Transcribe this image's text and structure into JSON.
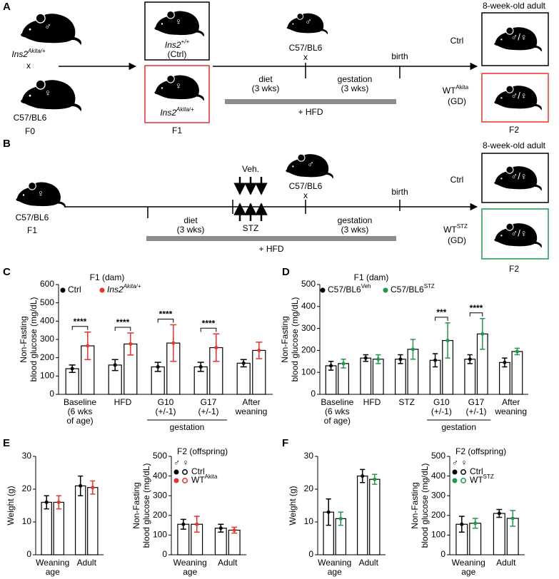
{
  "panel_labels": [
    "A",
    "B",
    "C",
    "D",
    "E",
    "F"
  ],
  "panel_a": {
    "f0_male_sign": "♂",
    "f0_male_gene": "Ins2",
    "f0_male_allele": "Akita/+",
    "f0_cross": "x",
    "f0_female_sign": "♀",
    "f0_female_strain": "C57/BL6",
    "f0_generation": "F0",
    "f1_ctrl_sign": "♀",
    "f1_ctrl_gene": "Ins2",
    "f1_ctrl_allele": "+/+",
    "f1_ctrl_label": "(Ctrl)",
    "f1_akita_sign": "♀",
    "f1_akita_gene": "Ins2",
    "f1_akita_allele": "Akita/+",
    "f1_generation": "F1",
    "sire_sign": "♂",
    "sire_strain": "C57/BL6",
    "sire_cross": "x",
    "diet": "diet",
    "diet_duration": "(3 wks)",
    "gestation": "gestation",
    "gestation_duration": "(3 wks)",
    "birth": "birth",
    "hfd": "+ HFD",
    "f2_title": "8-week-old adult",
    "f2_ctrl": "Ctrl",
    "f2_ctrl_sign": "♂/♀",
    "f2_gd_name": "WT",
    "f2_gd_sup": "Akita",
    "f2_gd_label": "(GD)",
    "f2_gd_sign": "♂/♀",
    "f2_generation": "F2"
  },
  "panel_b": {
    "f1_sign": "♀",
    "f1_strain": "C57/BL6",
    "f1_generation": "F1",
    "veh": "Veh.",
    "stz": "STZ",
    "diet": "diet",
    "diet_duration": "(3 wks)",
    "sire_sign": "♂",
    "sire_strain": "C57/BL6",
    "sire_cross": "x",
    "gestation": "gestation",
    "gestation_duration": "(3 wks)",
    "birth": "birth",
    "hfd": "+ HFD",
    "f2_title": "8-week-old adult",
    "f2_ctrl": "Ctrl",
    "f2_ctrl_sign": "♂/♀",
    "f2_gd_name": "WT",
    "f2_gd_sup": "STZ",
    "f2_gd_label": "(GD)",
    "f2_gd_sign": "♂/♀",
    "f2_generation": "F2"
  },
  "chart_data": [
    {
      "type": "bar",
      "title": "F1 (dam)",
      "ylabel": [
        "Non-Fasting",
        "blood glucose (mg/dL)"
      ],
      "categories": [
        [
          "Baseline",
          "(6 wks",
          "of age)"
        ],
        [
          "HFD"
        ],
        [
          "G10",
          "(+/-1)"
        ],
        [
          "G17",
          "(+/-1)"
        ],
        [
          "After",
          "weaning"
        ]
      ],
      "group_label": {
        "text": "gestation",
        "categories": [
          2,
          3
        ]
      },
      "series": [
        {
          "name": "Ctrl",
          "color": "#000000",
          "values": [
            140,
            160,
            150,
            150,
            170
          ],
          "errors": [
            20,
            30,
            25,
            25,
            20
          ]
        },
        {
          "name": "Ins2",
          "superscript": "Akita/+",
          "italic": true,
          "color": "#e8322b",
          "values": [
            265,
            275,
            280,
            255,
            240
          ],
          "errors": [
            75,
            60,
            100,
            75,
            45
          ]
        }
      ],
      "significance": [
        {
          "category": 0,
          "label": "****"
        },
        {
          "category": 1,
          "label": "****"
        },
        {
          "category": 2,
          "label": "****"
        },
        {
          "category": 3,
          "label": "****"
        }
      ],
      "ylim": [
        0,
        600
      ],
      "yticks": [
        0,
        100,
        200,
        300,
        400,
        500,
        600
      ]
    },
    {
      "type": "bar",
      "title": "F1 (dam)",
      "ylabel": [
        "Non-Fasting",
        "blood glucose (mg/dL)"
      ],
      "categories": [
        [
          "Baseline",
          "(6 wks",
          "of age)"
        ],
        [
          "HFD"
        ],
        [
          "STZ"
        ],
        [
          "G10",
          "(+/-1)"
        ],
        [
          "G17",
          "(+/-1)"
        ],
        [
          "After",
          "weaning"
        ]
      ],
      "group_label": {
        "text": "gestation",
        "categories": [
          3,
          4
        ]
      },
      "series": [
        {
          "name": "C57/BL6",
          "superscript": "Veh",
          "color": "#000000",
          "values": [
            130,
            165,
            160,
            155,
            160,
            145
          ],
          "errors": [
            20,
            15,
            20,
            30,
            20,
            20
          ]
        },
        {
          "name": "C57/BL6",
          "superscript": "STZ",
          "color": "#1f9a4b",
          "values": [
            140,
            160,
            205,
            245,
            275,
            195
          ],
          "errors": [
            20,
            20,
            45,
            80,
            70,
            15
          ]
        }
      ],
      "significance": [
        {
          "category": 3,
          "label": "***"
        },
        {
          "category": 4,
          "label": "****"
        }
      ],
      "ylim": [
        0,
        500
      ],
      "yticks": [
        0,
        100,
        200,
        300,
        400,
        500
      ]
    },
    {
      "type": "bar",
      "ylabel": [
        "Weight (g)"
      ],
      "categories": [
        [
          "Weaning",
          "age"
        ],
        [
          "Adult"
        ]
      ],
      "series": [
        {
          "color": "#000000",
          "values": [
            16,
            21
          ],
          "errors": [
            2,
            3
          ]
        },
        {
          "color": "#e8322b",
          "values": [
            16,
            20.5
          ],
          "errors": [
            2,
            2
          ]
        }
      ],
      "ylim": [
        0,
        30
      ],
      "yticks": [
        0,
        10,
        20,
        30
      ]
    },
    {
      "type": "bar",
      "title": "F2 (offspring)",
      "legend_header": "♂ ♀",
      "ylabel": [
        "Non-Fasting",
        "blood glucose (mg/dL)"
      ],
      "categories": [
        [
          "Weaning",
          "age"
        ],
        [
          "Adult"
        ]
      ],
      "series": [
        {
          "name": "Ctrl",
          "color": "#000000",
          "values": [
            155,
            135
          ],
          "errors": [
            25,
            20
          ]
        },
        {
          "name": "WT",
          "superscript": "Akita",
          "color": "#e8322b",
          "values": [
            155,
            125
          ],
          "errors": [
            40,
            15
          ]
        }
      ],
      "ylim": [
        0,
        500
      ],
      "yticks": [
        0,
        100,
        200,
        300,
        400,
        500
      ]
    },
    {
      "type": "bar",
      "ylabel": [
        "Weight (g)"
      ],
      "categories": [
        [
          "Weaning",
          "age"
        ],
        [
          "Adult"
        ]
      ],
      "series": [
        {
          "color": "#000000",
          "values": [
            13,
            24
          ],
          "errors": [
            4,
            2
          ]
        },
        {
          "color": "#1f9a4b",
          "values": [
            11,
            23
          ],
          "errors": [
            2,
            1.5
          ]
        }
      ],
      "ylim": [
        0,
        30
      ],
      "yticks": [
        0,
        10,
        20,
        30
      ]
    },
    {
      "type": "bar",
      "title": "F2 (offspring)",
      "legend_header": "♂ ♀",
      "ylabel": [
        "Non-Fasting",
        "blood glucose (mg/dL)"
      ],
      "categories": [
        [
          "Weaning",
          "age"
        ],
        [
          "Adult"
        ]
      ],
      "series": [
        {
          "name": "Ctrl",
          "color": "#000000",
          "values": [
            155,
            210
          ],
          "errors": [
            40,
            20
          ]
        },
        {
          "name": "WT",
          "superscript": "STZ",
          "color": "#1f9a4b",
          "values": [
            160,
            185
          ],
          "errors": [
            25,
            40
          ]
        }
      ],
      "ylim": [
        0,
        500
      ],
      "yticks": [
        0,
        100,
        200,
        300,
        400,
        500
      ]
    }
  ]
}
